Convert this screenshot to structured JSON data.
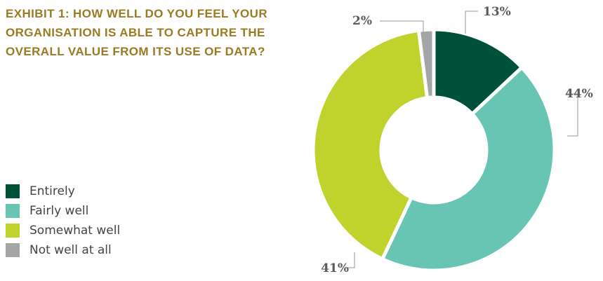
{
  "chart_data": {
    "type": "pie",
    "title": "EXHIBIT 1: HOW WELL DO YOU FEEL YOUR ORGANISATION IS ABLE TO CAPTURE THE OVERALL VALUE FROM ITS USE OF DATA?",
    "categories": [
      "Entirely",
      "Fairly well",
      "Somewhat well",
      "Not well at all"
    ],
    "values": [
      13,
      44,
      41,
      2
    ],
    "data_labels": [
      "13%",
      "44%",
      "41%",
      "2%"
    ],
    "colors": [
      "#00513a",
      "#68c5b4",
      "#c0d22c",
      "#a3a5a7"
    ],
    "donut": true,
    "legend_position": "bottom-left",
    "label_color": "#5a5a5a",
    "title_color": "#9a7a22"
  }
}
